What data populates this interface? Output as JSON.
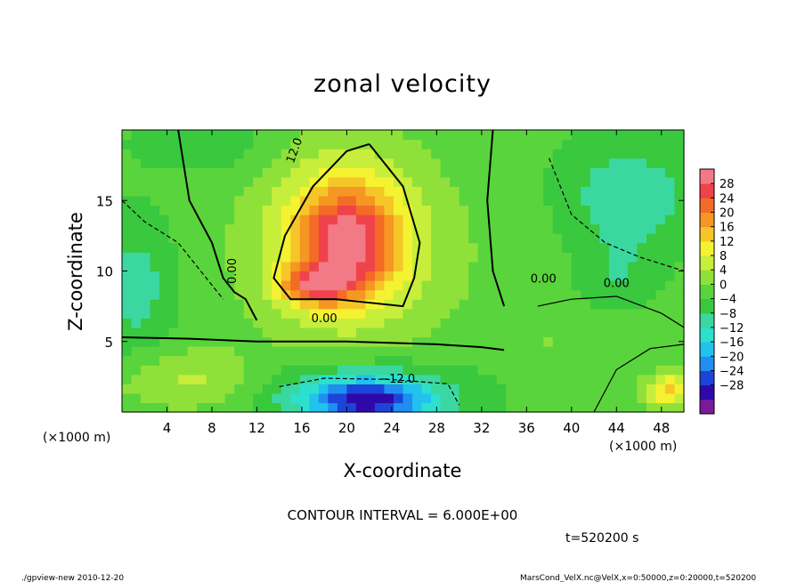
{
  "chart_data": {
    "type": "heatmap",
    "title": "zonal velocity",
    "xlabel": "X-coordinate",
    "ylabel": "Z-coordinate",
    "x_unit_left": "(×1000 m)",
    "x_unit_right": "(×1000 m)",
    "xlim": [
      0,
      50
    ],
    "ylim": [
      0,
      20
    ],
    "x_ticks": [
      "4",
      "8",
      "12",
      "16",
      "20",
      "24",
      "28",
      "32",
      "36",
      "40",
      "44",
      "48"
    ],
    "y_ticks": [
      "5",
      "10",
      "15"
    ],
    "colorbar_labels": [
      "28",
      "24",
      "20",
      "16",
      "12",
      "8",
      "4",
      "0",
      "−4",
      "−8",
      "−12",
      "−16",
      "−20",
      "−24",
      "−28"
    ],
    "colorbar_colors": [
      "#7a1a9a",
      "#2f08a8",
      "#1d44d8",
      "#1f8ef0",
      "#21c2ee",
      "#2ce0cd",
      "#3ad8a0",
      "#39c83e",
      "#5ad43c",
      "#8fe13a",
      "#c7ee3a",
      "#f4f231",
      "#f6c628",
      "#f69623",
      "#f36b26",
      "#f0424a",
      "#f27a86"
    ],
    "contour_labels": [
      "12.0",
      "0.00",
      "0.00",
      "0.00",
      "−12.0",
      "0.00"
    ],
    "contour_interval_text": "CONTOUR INTERVAL = 6.000E+00",
    "time_text": "t=520200  s",
    "footer_left": "./gpview-new   2010-12-20",
    "footer_right": "MarsCond_VelX.nc@VelX,x=0:50000,z=0:20000,t=520200",
    "field_blobs": [
      {
        "x": 25,
        "z": 10,
        "rx": 40,
        "rz": 10,
        "v": 3
      },
      {
        "x": 20,
        "z": 12.5,
        "rx": 7,
        "rz": 6.5,
        "v": 16
      },
      {
        "x": 20,
        "z": 12,
        "rx": 4,
        "rz": 3.5,
        "v": 19
      },
      {
        "x": 17,
        "z": 9,
        "rx": 3,
        "rz": 1.3,
        "v": 19
      },
      {
        "x": 6,
        "z": 2.2,
        "rx": 7,
        "rz": 2.2,
        "v": 8
      },
      {
        "x": 21,
        "z": 1.3,
        "rx": 9,
        "rz": 2.3,
        "v": -12
      },
      {
        "x": 22,
        "z": 0.8,
        "rx": 5,
        "rz": 1.4,
        "v": -18
      },
      {
        "x": 1,
        "z": 9,
        "rx": 4,
        "rz": 5,
        "v": -8
      },
      {
        "x": 45,
        "z": 15,
        "rx": 6,
        "rz": 4,
        "v": -9
      },
      {
        "x": 44,
        "z": 9.5,
        "rx": 4,
        "rz": 2.5,
        "v": -5
      },
      {
        "x": 48.5,
        "z": 1.6,
        "rx": 2,
        "rz": 1.2,
        "v": 16
      },
      {
        "x": 38,
        "z": 5,
        "rx": 3,
        "rz": 1.5,
        "v": 2
      },
      {
        "x": 8,
        "z": 19,
        "rx": 6,
        "rz": 2,
        "v": -4
      }
    ]
  }
}
